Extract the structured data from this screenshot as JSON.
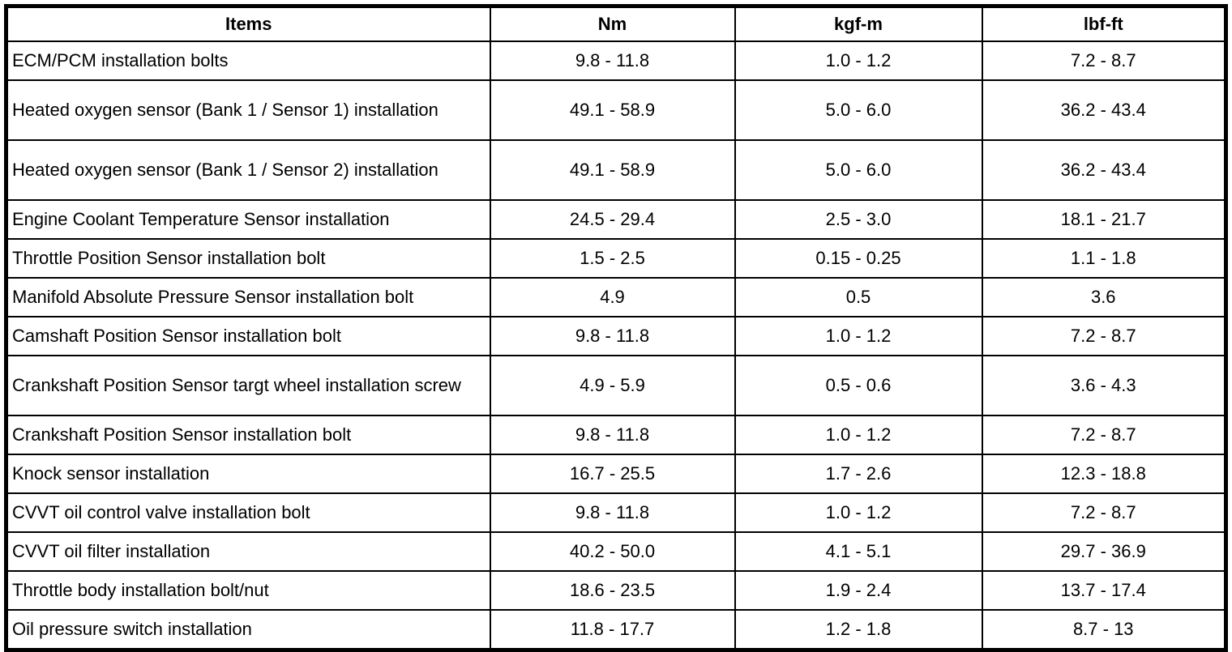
{
  "colors": {
    "border": "#000000",
    "background": "#ffffff",
    "text": "#000000"
  },
  "table": {
    "headers": [
      "Items",
      "Nm",
      "kgf-m",
      "lbf-ft"
    ],
    "rows": [
      {
        "item": "ECM/PCM installation bolts",
        "nm": "9.8 - 11.8",
        "kgf_m": "1.0 - 1.2",
        "lbf_ft": "7.2 - 8.7"
      },
      {
        "item": "Heated oxygen sensor (Bank 1 / Sensor 1) installation",
        "nm": "49.1 - 58.9",
        "kgf_m": "5.0 - 6.0",
        "lbf_ft": "36.2 - 43.4"
      },
      {
        "item": "Heated oxygen sensor (Bank 1 / Sensor 2) installation",
        "nm": "49.1 - 58.9",
        "kgf_m": "5.0 - 6.0",
        "lbf_ft": "36.2 - 43.4"
      },
      {
        "item": "Engine Coolant Temperature Sensor installation",
        "nm": "24.5 - 29.4",
        "kgf_m": "2.5 - 3.0",
        "lbf_ft": "18.1 - 21.7"
      },
      {
        "item": "Throttle Position Sensor installation bolt",
        "nm": "1.5 - 2.5",
        "kgf_m": "0.15 - 0.25",
        "lbf_ft": "1.1 - 1.8"
      },
      {
        "item": "Manifold Absolute Pressure Sensor installation bolt",
        "nm": "4.9",
        "kgf_m": "0.5",
        "lbf_ft": "3.6"
      },
      {
        "item": "Camshaft Position Sensor installation bolt",
        "nm": "9.8 - 11.8",
        "kgf_m": "1.0 - 1.2",
        "lbf_ft": "7.2 - 8.7"
      },
      {
        "item": "Crankshaft Position Sensor targt wheel installation screw",
        "nm": "4.9 - 5.9",
        "kgf_m": "0.5 - 0.6",
        "lbf_ft": "3.6 - 4.3"
      },
      {
        "item": "Crankshaft Position Sensor installation bolt",
        "nm": "9.8 - 11.8",
        "kgf_m": "1.0 - 1.2",
        "lbf_ft": "7.2 - 8.7"
      },
      {
        "item": "Knock sensor installation",
        "nm": "16.7 - 25.5",
        "kgf_m": "1.7 - 2.6",
        "lbf_ft": "12.3 - 18.8"
      },
      {
        "item": "CVVT oil control valve installation bolt",
        "nm": "9.8 - 11.8",
        "kgf_m": "1.0 - 1.2",
        "lbf_ft": "7.2 - 8.7"
      },
      {
        "item": "CVVT oil filter installation",
        "nm": "40.2 - 50.0",
        "kgf_m": "4.1 - 5.1",
        "lbf_ft": "29.7 - 36.9"
      },
      {
        "item": "Throttle body installation bolt/nut",
        "nm": "18.6 - 23.5",
        "kgf_m": "1.9 - 2.4",
        "lbf_ft": "13.7 - 17.4"
      },
      {
        "item": "Oil pressure switch installation",
        "nm": "11.8 - 17.7",
        "kgf_m": "1.2 - 1.8",
        "lbf_ft": "8.7 - 13"
      }
    ]
  }
}
